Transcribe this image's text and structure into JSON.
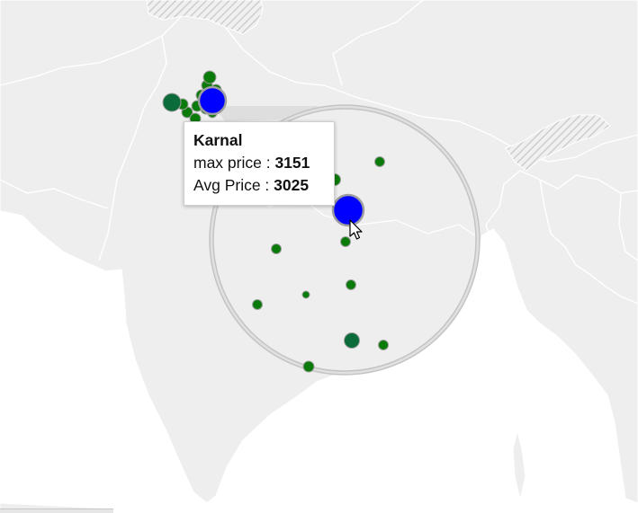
{
  "map": {
    "colors": {
      "water": "#ffffff",
      "land": "#eeeeee",
      "border": "#ffffff",
      "hatch": "#cccccc",
      "marker_green": "#0a7a0a",
      "marker_dark_green": "#0c6b3a",
      "marker_selected": "#0000ff",
      "marker_outline": "#9e9e9e",
      "lens_ring": "#c4c4c4"
    },
    "markers_cluster": [
      {
        "id": 1,
        "color": "#0c6b3a"
      },
      {
        "id": 2,
        "color": "#0a7a0a"
      },
      {
        "id": 3,
        "color": "#0a7a0a"
      },
      {
        "id": 4,
        "color": "#0a7a0a"
      },
      {
        "id": 5,
        "color": "#0a7a0a"
      },
      {
        "id": 6,
        "color": "#0a7a0a"
      },
      {
        "id": 7,
        "color": "#0a7a0a"
      },
      {
        "id": 8,
        "color": "#0a7a0a"
      },
      {
        "id": 9,
        "color": "#0a7a0a"
      },
      {
        "id": 10,
        "color": "#0a7a0a"
      },
      {
        "id": 11,
        "color": "#0a7a0a"
      },
      {
        "id": 12,
        "color": "#0a7a0a"
      },
      {
        "id": 13,
        "color": "#0000ff"
      }
    ],
    "markers_lens": [
      {
        "id": 1,
        "color": "#0a7a0a"
      },
      {
        "id": 2,
        "color": "#0a7a0a"
      },
      {
        "id": 3,
        "color": "#0000ff",
        "selected": true
      },
      {
        "id": 4,
        "color": "#0a7a0a"
      },
      {
        "id": 5,
        "color": "#0a7a0a"
      },
      {
        "id": 6,
        "color": "#0a7a0a"
      },
      {
        "id": 7,
        "color": "#0a7a0a"
      },
      {
        "id": 8,
        "color": "#0a7a0a"
      },
      {
        "id": 9,
        "color": "#0c6b3a"
      },
      {
        "id": 10,
        "color": "#0a7a0a"
      },
      {
        "id": 11,
        "color": "#0a7a0a"
      }
    ]
  },
  "tooltip": {
    "title": "Karnal",
    "max_label": "max price : ",
    "max_value": "3151",
    "avg_label": "Avg Price : ",
    "avg_value": "3025"
  }
}
